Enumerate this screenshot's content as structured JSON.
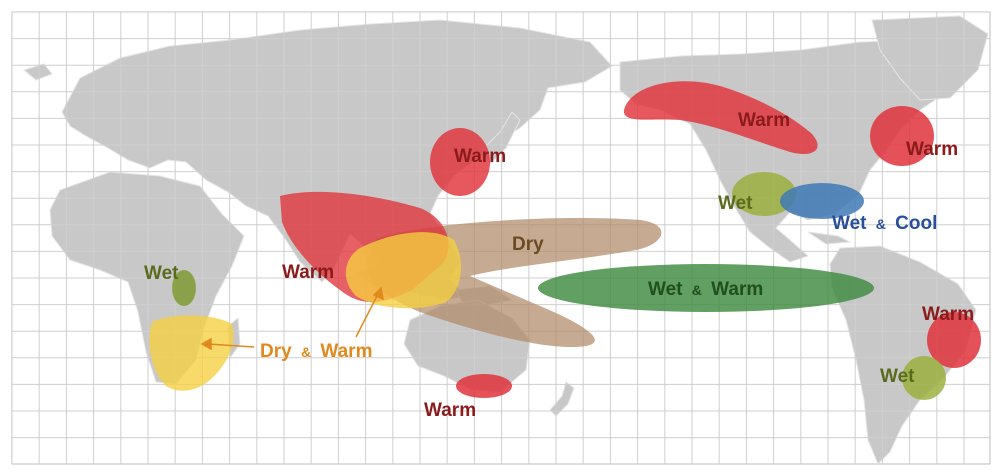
{
  "colors": {
    "warm": "#e0333b",
    "warm_text": "#8b1a1a",
    "wet": "#9aae3a",
    "wet_text": "#5b6b1e",
    "cool": "#3f79b5",
    "cool_text": "#2a4f9a",
    "dry": "#b08a68",
    "dry_text": "#6b4a22",
    "dry_warm": "#f5cf40",
    "dry_warm_text": "#e08a1e",
    "wet_warm": "#3f8a3f",
    "wet_warm_text": "#1f4f1f",
    "land": "#c8c8c8",
    "ocean": "#ffffff",
    "grid": "#cfcfcf"
  },
  "labels": {
    "warm_korea": "Warm",
    "warm_alaska": "Warm",
    "warm_northeast_us": "Warm",
    "warm_south_asia": "Warm",
    "warm_brazil": "Warm",
    "warm_australia": "Warm",
    "wet_east_africa": "Wet",
    "wet_us_southwest": "Wet",
    "wet_south_america": "Wet",
    "wet_cool_gulf": "Wet",
    "wet_cool_amp": "&",
    "wet_cool_word": "Cool",
    "dry_pacific": "Dry",
    "dry_warm_word1": "Dry",
    "dry_warm_amp": "&",
    "dry_warm_word2": "Warm",
    "wet_warm_word1": "Wet",
    "wet_warm_amp": "&",
    "wet_warm_word2": "Warm"
  }
}
